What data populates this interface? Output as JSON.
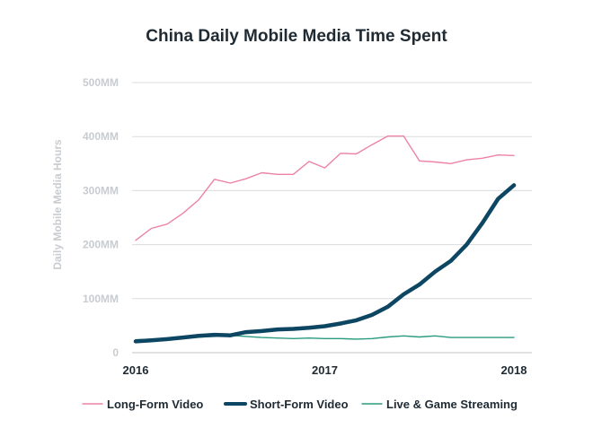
{
  "chart_data": {
    "type": "line",
    "title": "China Daily Mobile Media Time Spent",
    "xlabel": "",
    "ylabel": "Daily Mobile Media Hours",
    "x": [
      "2016-01",
      "2016-02",
      "2016-03",
      "2016-04",
      "2016-05",
      "2016-06",
      "2016-07",
      "2016-08",
      "2016-09",
      "2016-10",
      "2016-11",
      "2016-12",
      "2017-01",
      "2017-02",
      "2017-03",
      "2017-04",
      "2017-05",
      "2017-06",
      "2017-07",
      "2017-08",
      "2017-09",
      "2017-10",
      "2017-11",
      "2017-12",
      "2018-01"
    ],
    "x_ticks": [
      "2016",
      "2017",
      "2018"
    ],
    "ylim": [
      0,
      500
    ],
    "y_ticks": [
      0,
      100,
      200,
      300,
      400,
      500
    ],
    "y_tick_labels": [
      "0",
      "100MM",
      "200MM",
      "300MM",
      "400MM",
      "500MM"
    ],
    "grid": true,
    "legend_position": "bottom",
    "series": [
      {
        "name": "Long-Form Video",
        "color": "#ee82a6",
        "values": [
          208,
          230,
          238,
          258,
          283,
          321,
          314,
          322,
          333,
          330,
          330,
          354,
          342,
          369,
          368,
          385,
          401,
          401,
          355,
          353,
          350,
          357,
          360,
          366,
          365
        ]
      },
      {
        "name": "Short-Form Video",
        "color": "#0d4663",
        "values": [
          21,
          23,
          25,
          28,
          31,
          33,
          32,
          38,
          40,
          43,
          44,
          46,
          49,
          54,
          60,
          70,
          85,
          108,
          126,
          150,
          170,
          200,
          240,
          285,
          310
        ]
      },
      {
        "name": "Live & Game Streaming",
        "color": "#2a9a80",
        "values": [
          24,
          25,
          26,
          27,
          29,
          30,
          32,
          30,
          28,
          27,
          26,
          27,
          26,
          26,
          25,
          26,
          29,
          31,
          29,
          31,
          28,
          28,
          28,
          28,
          28
        ]
      }
    ]
  }
}
